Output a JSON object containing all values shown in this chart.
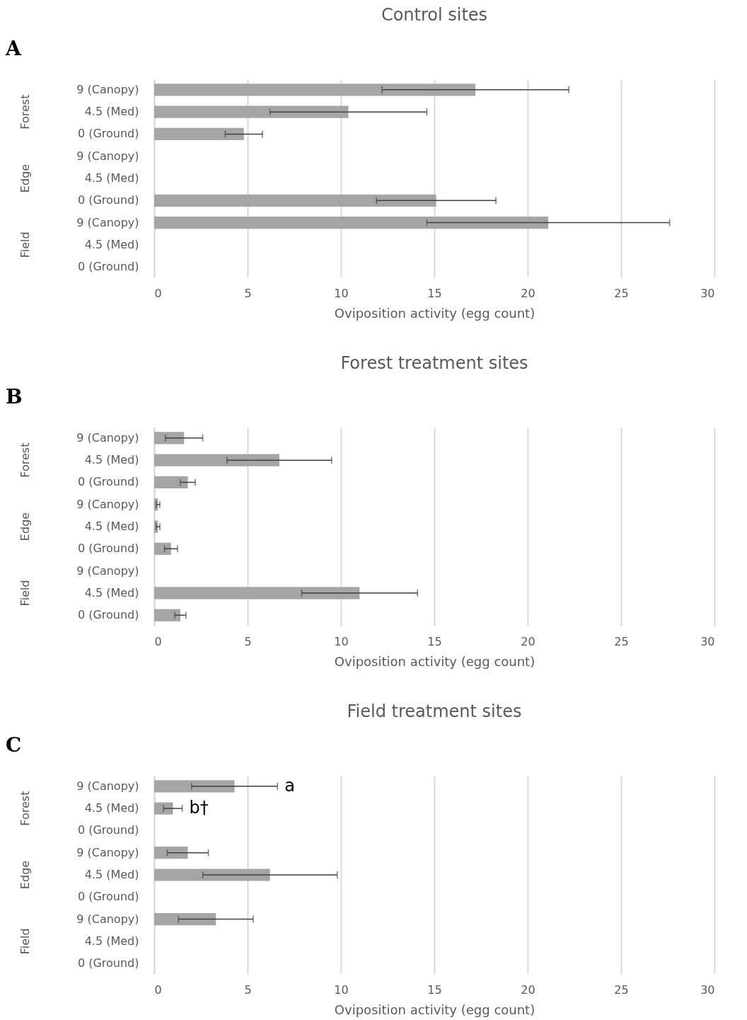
{
  "chart_data": [
    {
      "type": "bar",
      "orientation": "horizontal",
      "title": "Control sites",
      "xlabel": "Oviposition activity (egg count)",
      "categories": [
        "9 (Canopy)",
        "4.5 (Med)",
        "0 (Ground)",
        "9 (Canopy)",
        "4.5 (Med)",
        "0 (Ground)",
        "9 (Canopy)",
        "4.5 (Med)",
        "0 (Ground)"
      ],
      "values": [
        17.2,
        10.4,
        4.8,
        null,
        null,
        15.1,
        21.1,
        null,
        null
      ],
      "errors": [
        5.0,
        4.2,
        1.0,
        null,
        null,
        3.2,
        6.5,
        null,
        null
      ],
      "color": "#a5a5a5",
      "xlim": [
        0,
        30
      ],
      "xticks": [
        0,
        5,
        10,
        15,
        20,
        25,
        30
      ],
      "grid": "x",
      "annotations": [
        "A",
        "Forest",
        "Edge",
        "Field"
      ]
    },
    {
      "type": "bar",
      "orientation": "horizontal",
      "title": "Forest treatment sites",
      "xlabel": "Oviposition activity (egg count)",
      "categories": [
        "9 (Canopy)",
        "4.5 (Med)",
        "0 (Ground)",
        "9 (Canopy)",
        "4.5 (Med)",
        "0 (Ground)",
        "9 (Canopy)",
        "4.5 (Med)",
        "0 (Ground)"
      ],
      "values": [
        1.6,
        6.7,
        1.8,
        0.2,
        0.2,
        0.9,
        null,
        11.0,
        1.4
      ],
      "errors": [
        1.0,
        2.8,
        0.4,
        0.1,
        0.1,
        0.35,
        null,
        3.1,
        0.3
      ],
      "color": "#a5a5a5",
      "xlim": [
        0,
        30
      ],
      "xticks": [
        0,
        5,
        10,
        15,
        20,
        25,
        30
      ],
      "grid": "x",
      "annotations": [
        "B",
        "Forest",
        "Edge",
        "Field"
      ]
    },
    {
      "type": "bar",
      "orientation": "horizontal",
      "title": "Field treatment sites",
      "xlabel": "Oviposition activity (egg count)",
      "categories": [
        "9 (Canopy)",
        "4.5 (Med)",
        "0 (Ground)",
        "9 (Canopy)",
        "4.5 (Med)",
        "0 (Ground)",
        "9 (Canopy)",
        "4.5 (Med)",
        "0 (Ground)"
      ],
      "values": [
        4.3,
        1.0,
        0,
        1.8,
        6.2,
        0,
        3.3,
        0,
        0
      ],
      "errors": [
        2.3,
        0.5,
        null,
        1.1,
        3.6,
        null,
        2.0,
        null,
        null
      ],
      "color": "#a5a5a5",
      "xlim": [
        0,
        30
      ],
      "xticks": [
        0,
        5,
        10,
        15,
        20,
        25,
        30
      ],
      "grid": "x",
      "annotations": [
        "C",
        "Forest",
        "Edge",
        "Field",
        "a",
        "b†"
      ]
    }
  ]
}
